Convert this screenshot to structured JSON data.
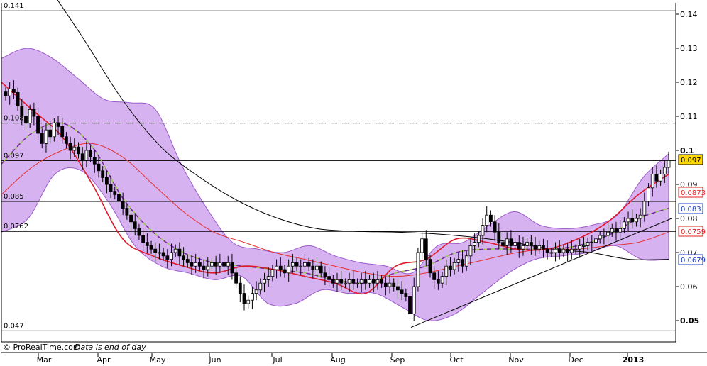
{
  "chart_data": {
    "type": "candlestick",
    "ylim": [
      0.043,
      0.145
    ],
    "y_ticks": [
      0.05,
      0.06,
      0.07,
      0.08,
      0.09,
      0.1,
      0.11,
      0.12,
      0.13,
      0.14
    ],
    "y_tick_labels": [
      "0.05",
      "0.06",
      "0.07",
      "0.08",
      "0.09",
      "0.1",
      "0.11",
      "0.12",
      "0.13",
      "0.14"
    ],
    "bold_ticks": [
      "0.05",
      "0.1"
    ],
    "x_labels": [
      {
        "label": "Mar",
        "bold": false
      },
      {
        "label": "Apr",
        "bold": false
      },
      {
        "label": "May",
        "bold": false
      },
      {
        "label": "Jun",
        "bold": false
      },
      {
        "label": "Jul",
        "bold": false
      },
      {
        "label": "Aug",
        "bold": false
      },
      {
        "label": "Sep",
        "bold": false
      },
      {
        "label": "Oct",
        "bold": false
      },
      {
        "label": "Nov",
        "bold": false
      },
      {
        "label": "Dec",
        "bold": false
      },
      {
        "label": "2013",
        "bold": true
      }
    ],
    "levels": [
      {
        "value": 0.141,
        "label": "0.141",
        "style": "solid"
      },
      {
        "value": 0.108,
        "label": "0.108",
        "style": "dashed"
      },
      {
        "value": 0.097,
        "label": "0.097",
        "style": "solid"
      },
      {
        "value": 0.085,
        "label": "0.085",
        "style": "solid"
      },
      {
        "value": 0.0762,
        "label": "0.0762",
        "style": "solid"
      },
      {
        "value": 0.047,
        "label": "0.047",
        "style": "solid"
      }
    ],
    "close": [
      0.116,
      0.118,
      0.117,
      0.113,
      0.11,
      0.108,
      0.112,
      0.11,
      0.105,
      0.102,
      0.106,
      0.104,
      0.108,
      0.107,
      0.104,
      0.102,
      0.1,
      0.101,
      0.099,
      0.097,
      0.1,
      0.098,
      0.096,
      0.094,
      0.092,
      0.09,
      0.088,
      0.087,
      0.085,
      0.083,
      0.081,
      0.079,
      0.077,
      0.075,
      0.073,
      0.072,
      0.071,
      0.07,
      0.07,
      0.069,
      0.068,
      0.07,
      0.071,
      0.069,
      0.068,
      0.067,
      0.066,
      0.067,
      0.066,
      0.065,
      0.066,
      0.067,
      0.066,
      0.067,
      0.066,
      0.067,
      0.064,
      0.061,
      0.058,
      0.055,
      0.056,
      0.058,
      0.059,
      0.061,
      0.062,
      0.063,
      0.065,
      0.066,
      0.065,
      0.064,
      0.066,
      0.067,
      0.066,
      0.066,
      0.067,
      0.066,
      0.065,
      0.066,
      0.064,
      0.063,
      0.062,
      0.061,
      0.062,
      0.061,
      0.061,
      0.062,
      0.061,
      0.061,
      0.062,
      0.061,
      0.062,
      0.061,
      0.062,
      0.061,
      0.06,
      0.061,
      0.06,
      0.059,
      0.058,
      0.057,
      0.052,
      0.06,
      0.07,
      0.074,
      0.068,
      0.064,
      0.062,
      0.061,
      0.063,
      0.066,
      0.065,
      0.067,
      0.068,
      0.066,
      0.069,
      0.072,
      0.073,
      0.075,
      0.078,
      0.081,
      0.079,
      0.076,
      0.073,
      0.072,
      0.074,
      0.072,
      0.073,
      0.071,
      0.072,
      0.073,
      0.072,
      0.071,
      0.072,
      0.071,
      0.07,
      0.07,
      0.071,
      0.07,
      0.071,
      0.07,
      0.071,
      0.071,
      0.072,
      0.072,
      0.073,
      0.073,
      0.074,
      0.075,
      0.075,
      0.076,
      0.077,
      0.076,
      0.077,
      0.079,
      0.08,
      0.079,
      0.08,
      0.081,
      0.085,
      0.089,
      0.093,
      0.091,
      0.093,
      0.095,
      0.097
    ],
    "series": [
      {
        "role": "ma_short",
        "values": [
          0.12,
          0.112,
          0.104,
          0.09,
          0.074,
          0.069,
          0.066,
          0.064,
          0.066,
          0.065,
          0.063,
          0.061,
          0.058,
          0.066,
          0.068,
          0.074,
          0.073,
          0.071,
          0.071,
          0.074,
          0.079,
          0.087,
          0.093
        ]
      },
      {
        "role": "ma_mid",
        "values": [
          0.096,
          0.105,
          0.108,
          0.101,
          0.086,
          0.076,
          0.07,
          0.067,
          0.066,
          0.065,
          0.064,
          0.062,
          0.061,
          0.064,
          0.066,
          0.07,
          0.071,
          0.071,
          0.071,
          0.072,
          0.075,
          0.08,
          0.083
        ]
      },
      {
        "role": "ma_long",
        "values": [
          0.087,
          0.095,
          0.1,
          0.102,
          0.098,
          0.09,
          0.082,
          0.076,
          0.073,
          0.07,
          0.068,
          0.066,
          0.064,
          0.063,
          0.064,
          0.066,
          0.068,
          0.07,
          0.071,
          0.071,
          0.072,
          0.073,
          0.076
        ]
      },
      {
        "role": "ma_200",
        "values": [
          0.15,
          0.133,
          0.115,
          0.101,
          0.092,
          0.085,
          0.08,
          0.077,
          0.0762,
          0.076,
          0.0755,
          0.0745,
          0.073,
          0.071,
          0.07,
          0.068,
          0.068
        ]
      },
      {
        "role": "bollinger_upper",
        "values": [
          0.127,
          0.13,
          0.127,
          0.121,
          0.115,
          0.114,
          0.112,
          0.096,
          0.083,
          0.073,
          0.071,
          0.07,
          0.072,
          0.069,
          0.067,
          0.066,
          0.064,
          0.072,
          0.073,
          0.078,
          0.082,
          0.078,
          0.077,
          0.078,
          0.081,
          0.092,
          0.099
        ]
      },
      {
        "role": "bollinger_lower",
        "values": [
          0.076,
          0.08,
          0.093,
          0.094,
          0.085,
          0.072,
          0.066,
          0.064,
          0.062,
          0.063,
          0.055,
          0.055,
          0.059,
          0.058,
          0.058,
          0.054,
          0.05,
          0.052,
          0.058,
          0.064,
          0.068,
          0.069,
          0.07,
          0.072,
          0.068,
          0.068
        ]
      },
      {
        "role": "trendline",
        "values": [
          0.048,
          0.08
        ]
      }
    ],
    "right_badges": [
      {
        "label": "0.097",
        "color": "#000000",
        "fill": "#ffd700"
      },
      {
        "label": "0.0873",
        "color": "#e02020",
        "fill": "#ffffff"
      },
      {
        "label": "0.083",
        "color": "#1a3fc4",
        "fill": "#ffffff"
      },
      {
        "label": "0.0759",
        "color": "#e02020",
        "fill": "#ffffff"
      },
      {
        "label": "0.0679",
        "color": "#1a3fc4",
        "fill": "#ffffff"
      }
    ],
    "colors": {
      "band_fill": "#d6b3f0",
      "band_edge": "#9b59c9",
      "ma_short": "#e0192a",
      "ma_mid_dash": "#7a1fa6",
      "ma_mid_green": "#9acb4a",
      "ma_long": "#e53030",
      "ma_200": "#000000",
      "candle": "#000000"
    }
  },
  "footer": {
    "copyright": "© ProRealTime.com",
    "note": "Data is end of day"
  }
}
